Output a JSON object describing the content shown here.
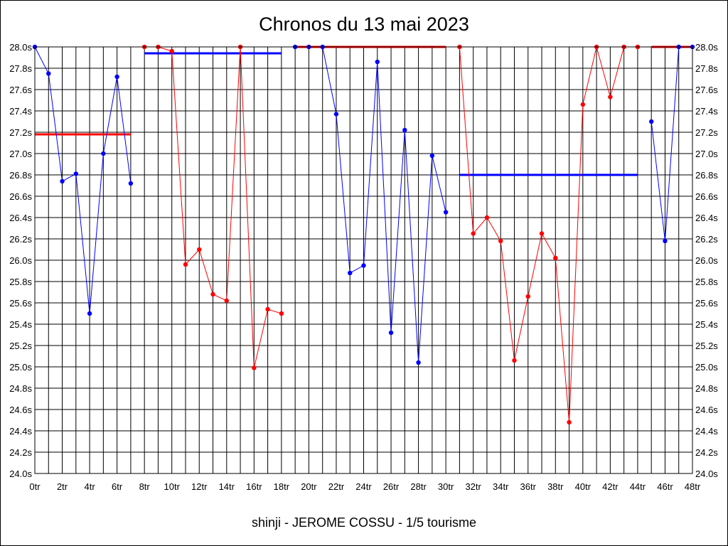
{
  "chart_data": {
    "type": "line",
    "title": "Chronos du 13 mai 2023",
    "subtitle": "shinji - JEROME COSSU - 1/5 tourisme",
    "xlabel": "",
    "ylabel": "",
    "xlim": [
      0,
      48
    ],
    "ylim": [
      24.0,
      28.0
    ],
    "grid": true,
    "x_ticks": [
      "0tr",
      "2tr",
      "4tr",
      "6tr",
      "8tr",
      "10tr",
      "12tr",
      "14tr",
      "16tr",
      "18tr",
      "20tr",
      "22tr",
      "24tr",
      "26tr",
      "28tr",
      "30tr",
      "32tr",
      "34tr",
      "36tr",
      "38tr",
      "40tr",
      "42tr",
      "44tr",
      "46tr",
      "48tr"
    ],
    "y_ticks": [
      "24.0s",
      "24.2s",
      "24.4s",
      "24.6s",
      "24.8s",
      "25.0s",
      "25.2s",
      "25.4s",
      "25.6s",
      "25.8s",
      "26.0s",
      "26.2s",
      "26.4s",
      "26.6s",
      "26.8s",
      "27.0s",
      "27.2s",
      "27.4s",
      "27.6s",
      "27.8s",
      "28.0s"
    ],
    "y_tick_values": [
      24.0,
      24.2,
      24.4,
      24.6,
      24.8,
      25.0,
      25.2,
      25.4,
      25.6,
      25.8,
      26.0,
      26.2,
      26.4,
      26.6,
      26.8,
      27.0,
      27.2,
      27.4,
      27.6,
      27.8,
      28.0
    ],
    "series": [
      {
        "color": "#0000ff",
        "x": [
          0,
          1,
          2,
          3,
          4,
          5,
          6,
          7
        ],
        "y": [
          28.0,
          27.75,
          26.74,
          26.81,
          25.5,
          27.0,
          27.72,
          26.72
        ]
      },
      {
        "color": "#ff0000",
        "x": [
          8,
          9,
          10,
          11,
          12,
          13,
          14,
          15,
          16,
          17,
          18
        ],
        "y": [
          28.0,
          28.0,
          27.96,
          25.96,
          26.1,
          25.68,
          25.62,
          28.0,
          24.99,
          25.54,
          25.5
        ]
      },
      {
        "color": "#0000ff",
        "x": [
          19,
          20,
          21,
          22,
          23,
          24,
          25,
          26,
          27,
          28,
          29,
          30
        ],
        "y": [
          28.0,
          28.0,
          28.0,
          27.37,
          25.88,
          25.95,
          27.86,
          25.32,
          27.22,
          25.04,
          26.98,
          26.45
        ]
      },
      {
        "color": "#ff0000",
        "x": [
          31,
          32,
          33,
          34,
          35,
          36,
          37,
          38,
          39,
          40,
          41,
          42,
          43,
          44
        ],
        "y": [
          28.0,
          26.25,
          26.4,
          26.18,
          25.06,
          25.66,
          26.25,
          26.02,
          24.48,
          27.46,
          28.0,
          27.53,
          28.0,
          28.0
        ]
      },
      {
        "color": "#0000ff",
        "x": [
          45,
          46,
          47,
          48
        ],
        "y": [
          27.3,
          26.18,
          28.0,
          28.0
        ]
      }
    ],
    "reference_lines": [
      {
        "color": "#ff0000",
        "x": [
          0,
          7
        ],
        "y": 27.18
      },
      {
        "color": "#0000ff",
        "x": [
          8,
          18
        ],
        "y": 27.94
      },
      {
        "color": "#ff0000",
        "x": [
          19,
          30
        ],
        "y": 28.0
      },
      {
        "color": "#0000ff",
        "x": [
          31,
          44
        ],
        "y": 26.8
      },
      {
        "color": "#ff0000",
        "x": [
          45,
          48
        ],
        "y": 28.0
      }
    ]
  }
}
